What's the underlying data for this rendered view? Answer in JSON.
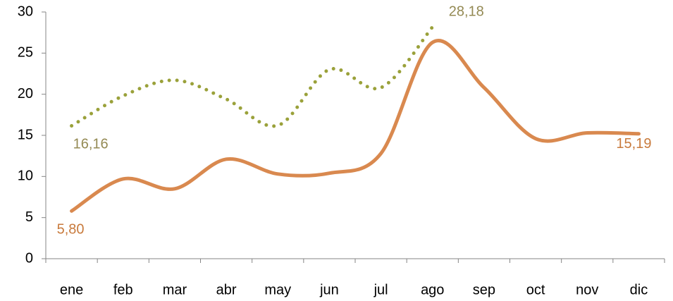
{
  "chart_data": {
    "type": "line",
    "categories": [
      "ene",
      "feb",
      "mar",
      "abr",
      "may",
      "jun",
      "jul",
      "ago",
      "sep",
      "oct",
      "nov",
      "dic"
    ],
    "series": [
      {
        "color": "#9aa13a",
        "label_color": "#948a54",
        "line_style": "dotted",
        "values": [
          16.16,
          19.8,
          21.7,
          19.4,
          16.2,
          23.0,
          20.8,
          28.18,
          null,
          null,
          null,
          null
        ],
        "value_labels": [
          "16,16",
          null,
          null,
          null,
          null,
          null,
          null,
          "28,18",
          null,
          null,
          null,
          null
        ]
      },
      {
        "color": "#d9894f",
        "label_color": "#c87a3c",
        "line_style": "solid",
        "values": [
          5.8,
          9.7,
          8.5,
          12.1,
          10.3,
          10.4,
          12.8,
          26.3,
          20.8,
          14.6,
          15.3,
          15.19
        ],
        "value_labels": [
          "5,80",
          null,
          null,
          null,
          null,
          null,
          null,
          null,
          null,
          null,
          null,
          "15,19"
        ]
      }
    ],
    "ylim": [
      0,
      30
    ],
    "yticks": [
      0,
      5,
      10,
      15,
      20,
      25,
      30
    ],
    "grid": false,
    "smooth": true
  }
}
